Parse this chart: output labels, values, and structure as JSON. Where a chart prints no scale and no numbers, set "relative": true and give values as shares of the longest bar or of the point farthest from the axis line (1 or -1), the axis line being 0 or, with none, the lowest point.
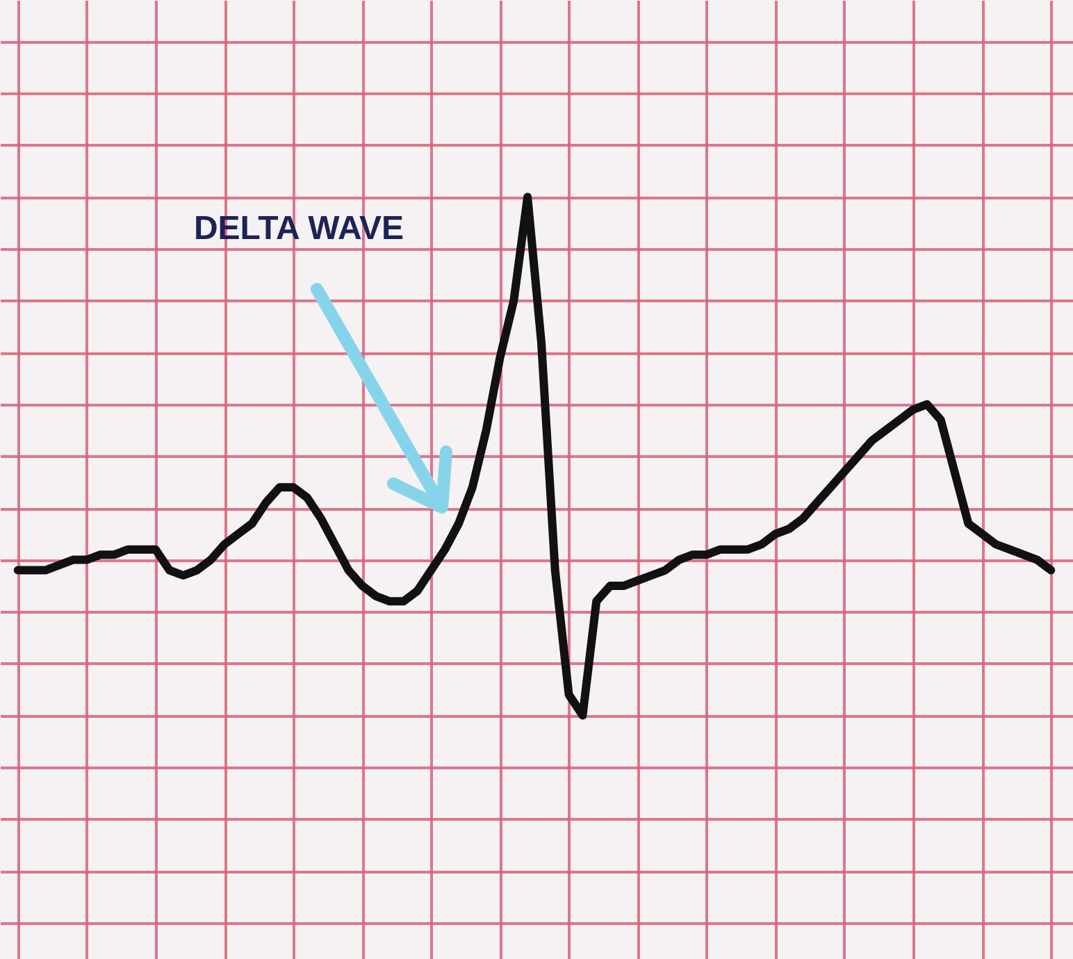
{
  "chart_data": {
    "type": "line",
    "relative": true,
    "grid": true,
    "color": "#111111",
    "line_style": "solid",
    "marker": "none",
    "categories": [
      null,
      null,
      null,
      null,
      null,
      null,
      null,
      null,
      null,
      null,
      null,
      null,
      null,
      null,
      null,
      null,
      null,
      null,
      null,
      null,
      null,
      null,
      null,
      null,
      null,
      null,
      null,
      null,
      null,
      null,
      null,
      null,
      null,
      null,
      null,
      null,
      null,
      null,
      null,
      null,
      null,
      null,
      null,
      null,
      null,
      null,
      null,
      null,
      null,
      null,
      null,
      null,
      null,
      null,
      null,
      null,
      null,
      null,
      null,
      null,
      null,
      null,
      null,
      null,
      null,
      null,
      null,
      null,
      null,
      null,
      null,
      null,
      null,
      null,
      null,
      null
    ],
    "values": [
      0.28,
      0.28,
      0.28,
      0.29,
      0.3,
      0.3,
      0.31,
      0.31,
      0.32,
      0.32,
      0.32,
      0.28,
      0.27,
      0.28,
      0.3,
      0.33,
      0.35,
      0.37,
      0.41,
      0.44,
      0.44,
      0.42,
      0.38,
      0.33,
      0.28,
      0.25,
      0.23,
      0.22,
      0.22,
      0.24,
      0.28,
      0.32,
      0.37,
      0.44,
      0.55,
      0.69,
      0.8,
      1,
      0.72,
      0.28,
      0.04,
      0,
      0.22,
      0.25,
      0.25,
      0.26,
      0.27,
      0.28,
      0.3,
      0.31,
      0.31,
      0.32,
      0.32,
      0.32,
      0.33,
      0.35,
      0.36,
      0.38,
      0.41,
      0.44,
      0.47,
      0.5,
      0.53,
      0.55,
      0.57,
      0.59,
      0.6,
      0.57,
      0.47,
      0.37,
      0.35,
      0.33,
      0.32,
      0.31,
      0.3,
      0.28
    ],
    "annotations": [
      "DELTA WAVE"
    ]
  }
}
